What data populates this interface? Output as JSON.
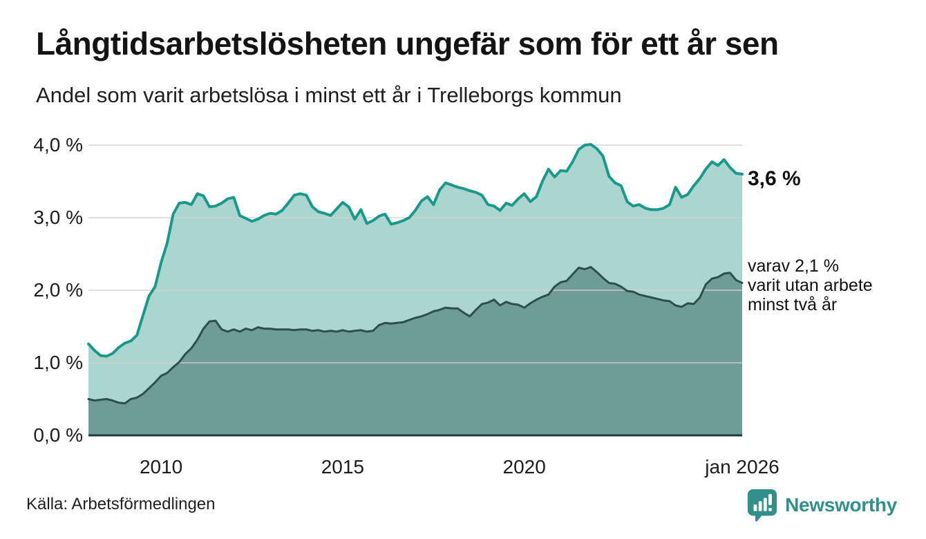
{
  "header": {
    "title": "Långtidsarbetslösheten ungefär som för ett år sen",
    "subtitle": "Andel som varit arbetslösa i minst ett år i Trelleborgs kommun"
  },
  "annotations": {
    "latest_value": "3,6 %",
    "secondary_line1": "varav 2,1 %",
    "secondary_line2": "varit utan arbete",
    "secondary_line3": "minst två år"
  },
  "footer": {
    "source": "Källa: Arbetsförmedlingen",
    "brand": "Newsworthy",
    "brand_icon": "newsworthy-speech-bubble-bar-chart-icon"
  },
  "colors": {
    "line_primary": "#18998a",
    "fill_primary": "#abd6d0",
    "line_secondary": "#2d4f4b",
    "fill_secondary": "#6f9c97",
    "grid": "#d2d2d2",
    "baseline": "#1e3b37",
    "brand_teal": "#31908a"
  },
  "chart_data": {
    "type": "area",
    "title": "Långtidsarbetslösheten ungefär som för ett år sen",
    "subtitle": "Andel som varit arbetslösa i minst ett år i Trelleborgs kommun",
    "x_start_year": 2008,
    "x_end_year": 2026,
    "x_resolution_months": 2,
    "ylim": [
      0,
      4
    ],
    "grid": "horizontal",
    "legend": "inline-annotations",
    "yticks": [
      {
        "value": 4,
        "label": "4,0 %"
      },
      {
        "value": 3,
        "label": "3,0 %"
      },
      {
        "value": 2,
        "label": "2,0 %"
      },
      {
        "value": 1,
        "label": "1,0 %"
      },
      {
        "value": 0,
        "label": "0,0 %"
      }
    ],
    "xticks": [
      {
        "year": 2010,
        "label": "2010"
      },
      {
        "year": 2015,
        "label": "2015"
      },
      {
        "year": 2020,
        "label": "2020"
      },
      {
        "year": 2026,
        "label": "jan 2026"
      }
    ],
    "series": [
      {
        "name": "Arbetslösa minst ett år",
        "latest_value_label": "3,6 %",
        "values": [
          1.26,
          1.17,
          1.1,
          1.09,
          1.13,
          1.21,
          1.27,
          1.3,
          1.38,
          1.65,
          1.92,
          2.05,
          2.38,
          2.65,
          3.05,
          3.2,
          3.21,
          3.18,
          3.33,
          3.3,
          3.15,
          3.16,
          3.2,
          3.26,
          3.28,
          3.03,
          2.99,
          2.95,
          2.98,
          3.03,
          3.06,
          3.05,
          3.1,
          3.2,
          3.31,
          3.33,
          3.31,
          3.15,
          3.08,
          3.06,
          3.03,
          3.12,
          3.21,
          3.15,
          2.98,
          3.11,
          2.92,
          2.96,
          3.02,
          3.05,
          2.91,
          2.93,
          2.96,
          3.0,
          3.1,
          3.23,
          3.29,
          3.18,
          3.38,
          3.48,
          3.45,
          3.42,
          3.4,
          3.37,
          3.35,
          3.31,
          3.18,
          3.16,
          3.1,
          3.2,
          3.17,
          3.26,
          3.33,
          3.22,
          3.29,
          3.5,
          3.67,
          3.56,
          3.65,
          3.64,
          3.77,
          3.94,
          4.0,
          4.01,
          3.95,
          3.85,
          3.57,
          3.48,
          3.44,
          3.22,
          3.16,
          3.18,
          3.13,
          3.11,
          3.11,
          3.13,
          3.18,
          3.42,
          3.28,
          3.32,
          3.44,
          3.54,
          3.67,
          3.77,
          3.72,
          3.8,
          3.69,
          3.61,
          3.6
        ]
      },
      {
        "name": "varav utan arbete minst två år",
        "latest_value_label": "2,1 %",
        "values": [
          0.5,
          0.48,
          0.49,
          0.5,
          0.48,
          0.45,
          0.44,
          0.5,
          0.52,
          0.57,
          0.65,
          0.73,
          0.82,
          0.86,
          0.94,
          1.01,
          1.12,
          1.2,
          1.32,
          1.47,
          1.57,
          1.58,
          1.46,
          1.43,
          1.46,
          1.43,
          1.47,
          1.45,
          1.49,
          1.47,
          1.47,
          1.46,
          1.46,
          1.46,
          1.45,
          1.46,
          1.46,
          1.44,
          1.45,
          1.43,
          1.44,
          1.43,
          1.45,
          1.43,
          1.44,
          1.45,
          1.43,
          1.44,
          1.52,
          1.55,
          1.54,
          1.55,
          1.56,
          1.59,
          1.62,
          1.64,
          1.67,
          1.71,
          1.73,
          1.76,
          1.75,
          1.75,
          1.69,
          1.64,
          1.73,
          1.81,
          1.83,
          1.87,
          1.79,
          1.84,
          1.81,
          1.8,
          1.76,
          1.82,
          1.87,
          1.91,
          1.94,
          2.05,
          2.11,
          2.13,
          2.22,
          2.31,
          2.29,
          2.32,
          2.25,
          2.17,
          2.1,
          2.09,
          2.05,
          1.99,
          1.98,
          1.94,
          1.92,
          1.9,
          1.88,
          1.86,
          1.85,
          1.79,
          1.77,
          1.82,
          1.81,
          1.9,
          2.08,
          2.16,
          2.18,
          2.23,
          2.24,
          2.14,
          2.1
        ]
      }
    ]
  }
}
